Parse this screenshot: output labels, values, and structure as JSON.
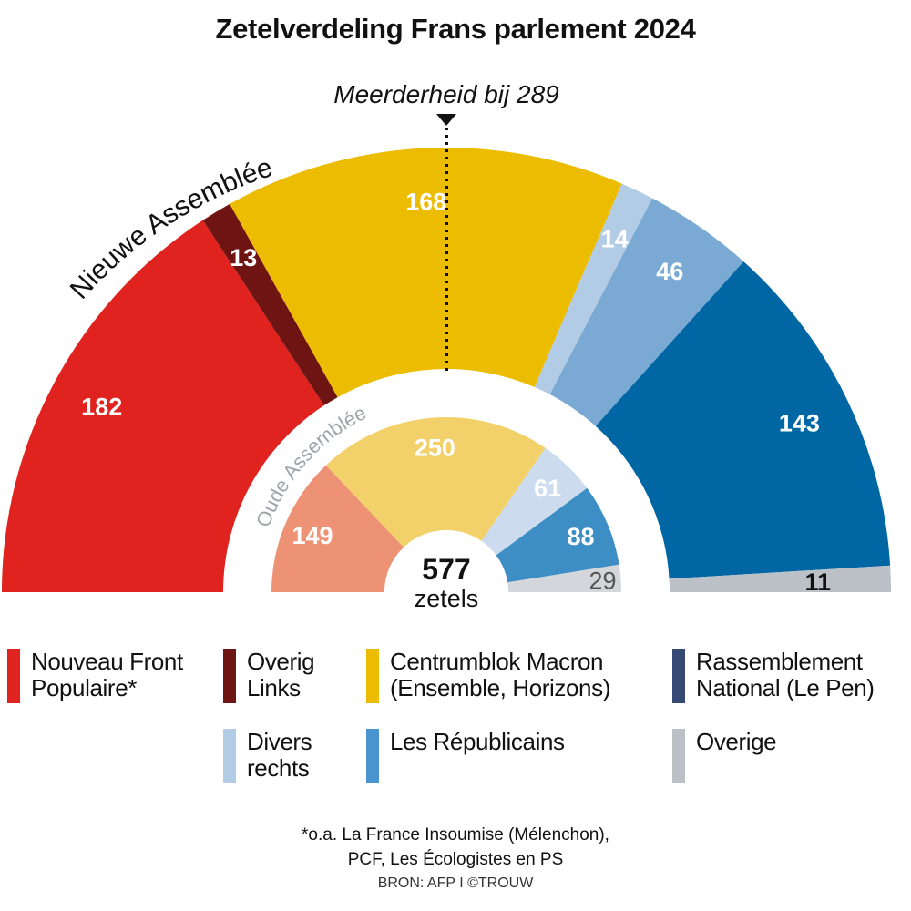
{
  "chart_data": {
    "type": "pie",
    "subtype": "parliament-semicircle",
    "title": "Zetelverdeling Frans parlement 2024",
    "total_seats": 577,
    "total_label": "577",
    "total_unit": "zetels",
    "majority": {
      "label": "Meerderheid bij 289",
      "value": 289
    },
    "rings": [
      {
        "name": "Nieuwe Assemblée",
        "segments": [
          {
            "party": "Nouveau Front Populaire",
            "value": 182,
            "color": "#e0231e"
          },
          {
            "party": "Overig Links",
            "value": 13,
            "color": "#6e1412"
          },
          {
            "party": "Centrumblok Macron",
            "value": 168,
            "color": "#ecbc00"
          },
          {
            "party": "Divers rechts",
            "value": 14,
            "color": "#b3cce6"
          },
          {
            "party": "Les Républicains",
            "value": 46,
            "color": "#7aaad3"
          },
          {
            "party": "Rassemblement National",
            "value": 143,
            "color": "#0066a4"
          },
          {
            "party": "Overige",
            "value": 11,
            "color": "#bcc1c7"
          }
        ]
      },
      {
        "name": "Oude Assemblée",
        "segments": [
          {
            "party": "Nouveau Front Populaire",
            "value": 149,
            "color": "#ee9275"
          },
          {
            "party": "Centrumblok Macron",
            "value": 250,
            "color": "#f2d06a"
          },
          {
            "party": "Divers rechts",
            "value": 61,
            "color": "#ccdcee"
          },
          {
            "party": "Les Républicains",
            "value": 88,
            "color": "#3c8ec4"
          },
          {
            "party": "Overige",
            "value": 29,
            "color": "#d3d6da"
          }
        ]
      }
    ]
  },
  "legend": [
    {
      "label": "Nouveau Front Populaire*",
      "lines": [
        "Nouveau Front",
        "Populaire*"
      ],
      "color": "#e0231e"
    },
    {
      "label": "Overig Links",
      "lines": [
        "Overig",
        "Links"
      ],
      "color": "#6e1412"
    },
    {
      "label": "Centrumblok Macron (Ensemble, Horizons)",
      "lines": [
        "Centrumblok Macron",
        "(Ensemble, Horizons)"
      ],
      "color": "#ecbc00"
    },
    {
      "label": "Rassemblement National (Le Pen)",
      "lines": [
        "Rassemblement",
        "National (Le Pen)"
      ],
      "color": "#344a72"
    },
    {
      "label": "Divers rechts",
      "lines": [
        "Divers",
        "rechts"
      ],
      "color": "#b3cce6"
    },
    {
      "label": "Les Républicains",
      "lines": [
        "Les Républicains",
        ""
      ],
      "color": "#4a95d0"
    },
    {
      "label": "Overige",
      "lines": [
        "Overige",
        ""
      ],
      "color": "#bcc1c7"
    }
  ],
  "footnote": [
    "*o.a. La France Insoumise (Mélenchon),",
    "PCF, Les Écologistes en PS"
  ],
  "source": "BRON: AFP I ©TROUW"
}
